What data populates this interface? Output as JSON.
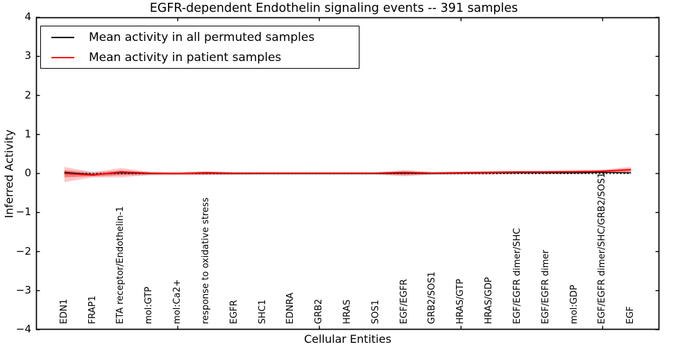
{
  "title": "EGFR-dependent Endothelin signaling events -- 391 samples",
  "legend": {
    "entries": [
      {
        "name": "permuted",
        "label": "Mean activity in all permuted samples",
        "color": "#000000"
      },
      {
        "name": "patient",
        "label": "Mean activity in patient samples",
        "color": "#ff0000"
      }
    ]
  },
  "chart_data": {
    "type": "line",
    "title": "EGFR-dependent Endothelin signaling events -- 391 samples",
    "xlabel": "Cellular Entities",
    "ylabel": "Inferred Activity",
    "ylim": [
      -4,
      4
    ],
    "xlim": [
      0,
      22
    ],
    "grid": false,
    "zero_line": "dotted",
    "legend_position": "upper left",
    "yticks": [
      4,
      3,
      2,
      1,
      0,
      -1,
      -2,
      -3,
      -4
    ],
    "ytick_labels": [
      "4",
      "3",
      "2",
      "1",
      "0",
      "−1",
      "−2",
      "−3",
      "−4"
    ],
    "xticks": [
      5,
      10,
      15,
      20
    ],
    "categories": [
      "EDN1",
      "FRAP1",
      "ETA receptor/Endothelin-1",
      "mol:GTP",
      "mol:Ca2+",
      "response to oxidative stress",
      "EGFR",
      "SHC1",
      "EDNRA",
      "GRB2",
      "HRAS",
      "SOS1",
      "EGF/EGFR",
      "GRB2/SOS1",
      "HRAS/GTP",
      "HRAS/GDP",
      "EGF/EGFR dimer/SHC",
      "EGF/EGFR dimer",
      "mol:GDP",
      "EGF/EGFR dimer/SHC/GRB2/SOS1",
      "EGF"
    ],
    "series": [
      {
        "name": "Mean activity in all permuted samples",
        "color": "#000000",
        "width": 1.3,
        "values": [
          0.03,
          -0.03,
          0.02,
          0.0,
          0.0,
          0.01,
          0.0,
          0.0,
          0.0,
          0.0,
          0.0,
          0.0,
          0.01,
          0.0,
          0.01,
          0.02,
          0.02,
          0.02,
          0.02,
          0.03,
          0.02
        ]
      },
      {
        "name": "Mean activity in patient samples",
        "color": "#ff0000",
        "width": 1.7,
        "values": [
          0.0,
          -0.04,
          0.04,
          0.01,
          0.0,
          0.02,
          0.01,
          0.01,
          0.01,
          0.01,
          0.01,
          0.01,
          0.03,
          0.01,
          0.02,
          0.03,
          0.04,
          0.04,
          0.05,
          0.06,
          0.1
        ]
      }
    ],
    "bands": [
      {
        "name": "permuted-std-band",
        "color": "rgba(0,0,0,0.12)",
        "upper": [
          0.09,
          0.05,
          0.06,
          0.05,
          0.04,
          0.05,
          0.04,
          0.04,
          0.04,
          0.04,
          0.04,
          0.04,
          0.06,
          0.04,
          0.05,
          0.06,
          0.06,
          0.07,
          0.06,
          0.07,
          0.06
        ],
        "lower": [
          -0.08,
          -0.08,
          -0.05,
          -0.05,
          -0.04,
          -0.04,
          -0.04,
          -0.04,
          -0.04,
          -0.04,
          -0.04,
          -0.04,
          -0.05,
          -0.04,
          -0.03,
          -0.03,
          -0.02,
          -0.02,
          -0.02,
          -0.01,
          -0.02
        ]
      },
      {
        "name": "patient-std-band-outer",
        "color": "rgba(255,0,0,0.22)",
        "upper": [
          0.17,
          0.03,
          0.14,
          0.04,
          0.03,
          0.06,
          0.03,
          0.03,
          0.03,
          0.03,
          0.03,
          0.03,
          0.09,
          0.04,
          0.05,
          0.06,
          0.07,
          0.07,
          0.08,
          0.1,
          0.17
        ],
        "lower": [
          -0.22,
          -0.1,
          -0.1,
          -0.04,
          -0.04,
          -0.04,
          -0.03,
          -0.02,
          -0.02,
          -0.02,
          -0.02,
          -0.02,
          -0.07,
          -0.02,
          -0.02,
          -0.02,
          -0.01,
          -0.01,
          -0.01,
          0.0,
          0.02
        ]
      },
      {
        "name": "patient-std-band-inner",
        "color": "rgba(255,0,0,0.30)",
        "upper": [
          0.08,
          0.0,
          0.08,
          0.02,
          0.01,
          0.04,
          0.02,
          0.02,
          0.02,
          0.02,
          0.02,
          0.02,
          0.05,
          0.02,
          0.03,
          0.04,
          0.05,
          0.05,
          0.06,
          0.08,
          0.13
        ],
        "lower": [
          -0.1,
          -0.07,
          -0.04,
          -0.02,
          -0.02,
          -0.02,
          -0.01,
          -0.01,
          -0.01,
          -0.01,
          -0.01,
          -0.01,
          -0.03,
          -0.01,
          -0.01,
          -0.01,
          0.0,
          0.0,
          0.0,
          0.02,
          0.05
        ]
      }
    ]
  }
}
